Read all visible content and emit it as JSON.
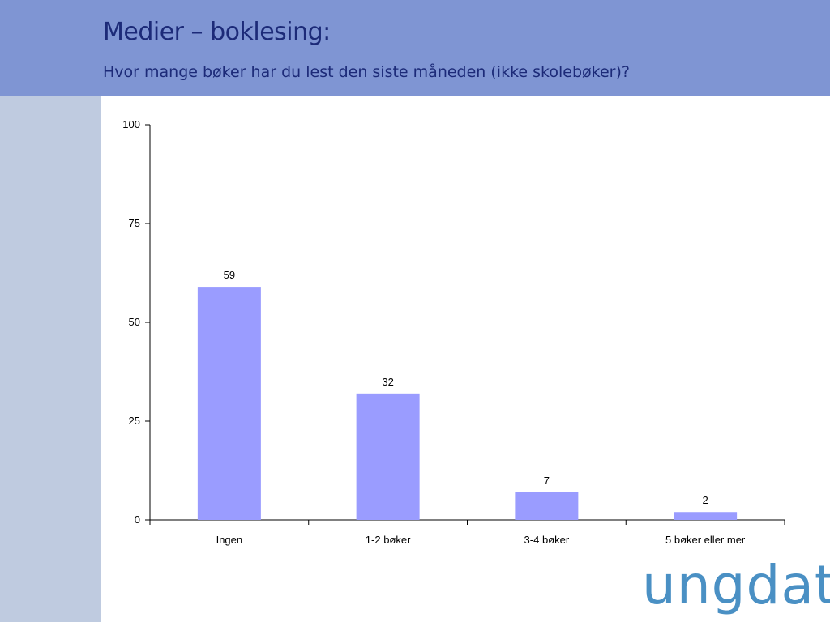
{
  "header": {
    "title": "Medier – boklesing:",
    "subtitle": "Hvor mange bøker har du lest den siste måneden (ikke skolebøker)?"
  },
  "logo": {
    "text": "ungdata"
  },
  "colors": {
    "header_bg": "#7f95d3",
    "sidebar_bg": "#bfcbe0",
    "bar": "#9a9cff",
    "title_text": "#1c2a78",
    "logo": "#4a90c4"
  },
  "chart_data": {
    "type": "bar",
    "categories": [
      "Ingen",
      "1-2 bøker",
      "3-4 bøker",
      "5 bøker eller mer"
    ],
    "values": [
      59,
      32,
      7,
      2
    ],
    "yticks": [
      0,
      25,
      50,
      75,
      100
    ],
    "ylim": [
      0,
      100
    ],
    "grid": false,
    "legend": "none"
  }
}
